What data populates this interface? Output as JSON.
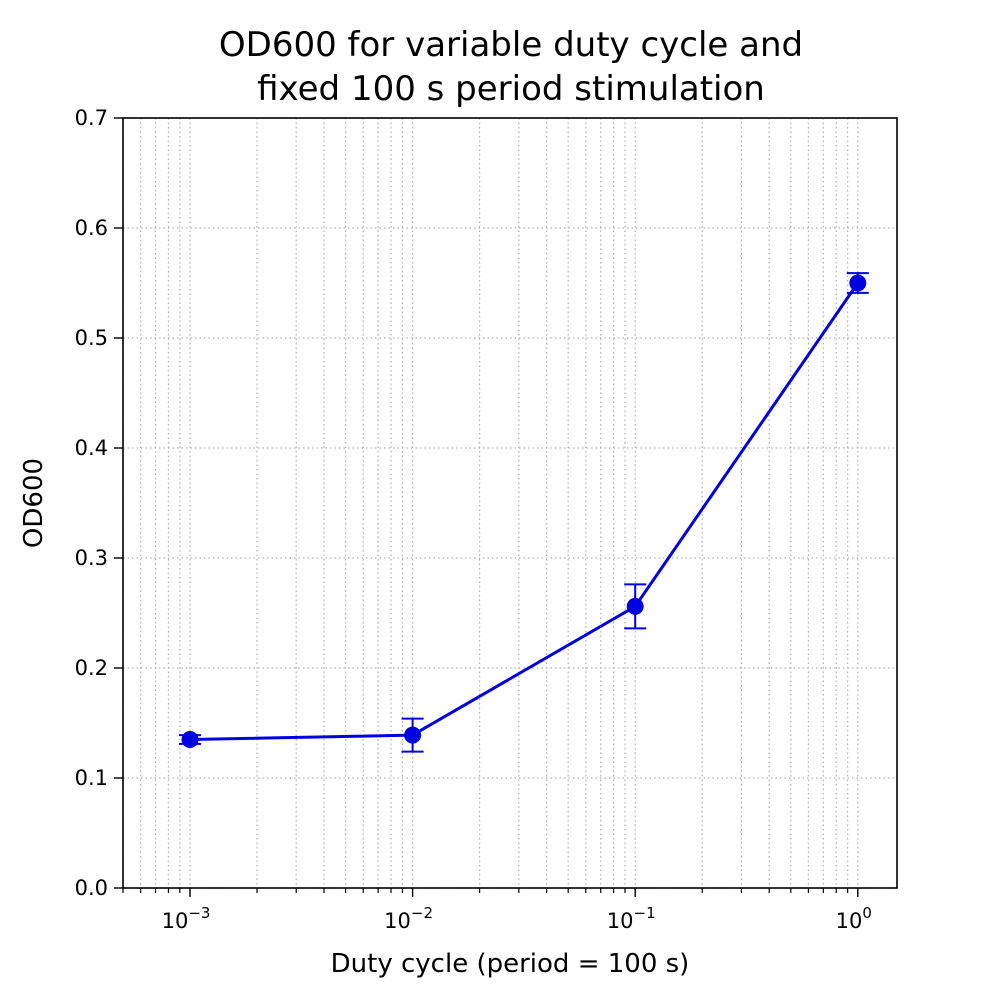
{
  "chart_data": {
    "type": "line",
    "title": [
      "OD600 for variable duty cycle and",
      "fixed 100 s period stimulation"
    ],
    "xlabel": "Duty cycle (period = 100 s)",
    "ylabel": "OD600",
    "xscale": "log",
    "xlim": [
      0.0005,
      1.5
    ],
    "ylim": [
      0.0,
      0.7
    ],
    "xticks": [
      {
        "value": 0.001,
        "base": "10",
        "exp": "−3"
      },
      {
        "value": 0.01,
        "base": "10",
        "exp": "−2"
      },
      {
        "value": 0.1,
        "base": "10",
        "exp": "−1"
      },
      {
        "value": 1,
        "base": "10",
        "exp": "0"
      }
    ],
    "yticks": [
      {
        "value": 0.0,
        "label": "0.0"
      },
      {
        "value": 0.1,
        "label": "0.1"
      },
      {
        "value": 0.2,
        "label": "0.2"
      },
      {
        "value": 0.3,
        "label": "0.3"
      },
      {
        "value": 0.4,
        "label": "0.4"
      },
      {
        "value": 0.5,
        "label": "0.5"
      },
      {
        "value": 0.6,
        "label": "0.6"
      },
      {
        "value": 0.7,
        "label": "0.7"
      }
    ],
    "grid": "both (major and minor), dotted gray",
    "series": [
      {
        "color": "#0000e0",
        "x": [
          0.001,
          0.01,
          0.1,
          1
        ],
        "y": [
          0.135,
          0.139,
          0.256,
          0.55
        ],
        "yerr": [
          0.004,
          0.015,
          0.02,
          0.009
        ]
      }
    ]
  }
}
